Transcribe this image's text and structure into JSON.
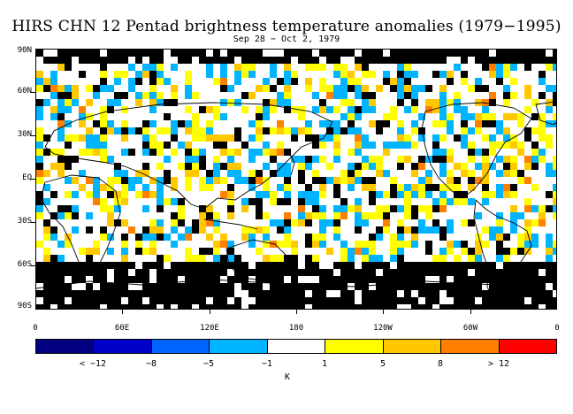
{
  "title": "HIRS CHN 12 Pentad brightness temperature anomalies (1979−1995)",
  "subtitle": "Sep 28 − Oct 2, 1979",
  "lat_labels": [
    "90N",
    "60N",
    "30N",
    "EQ",
    "30S",
    "60S",
    "90S"
  ],
  "lon_labels": [
    "0",
    "60E",
    "120E",
    "180",
    "120W",
    "60W",
    "0"
  ],
  "colorbar": {
    "unit": "K",
    "colors": [
      "#000080",
      "#0000c8",
      "#0064ff",
      "#00b4ff",
      "#ffffff",
      "#ffff00",
      "#ffc800",
      "#ff8000",
      "#ff0000"
    ],
    "labels": [
      "< −12",
      "−8",
      "−5",
      "−1",
      "1",
      "5",
      "8",
      "> 12"
    ]
  },
  "map_colors": {
    "missing": "#000000",
    "neutral": "#ffffff",
    "warm": "#ffff00",
    "warmer": "#ffc800",
    "hot": "#ff8000",
    "cool": "#00b4ff",
    "coast": "#000000"
  }
}
